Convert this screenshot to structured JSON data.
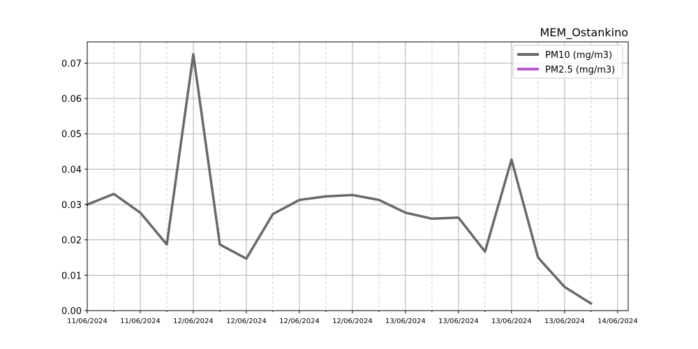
{
  "chart_data": {
    "type": "line",
    "title": "MEM_Ostankino",
    "xlabel": "",
    "ylabel": "",
    "ylim": [
      0.0,
      0.076
    ],
    "yticks": [
      0.0,
      0.01,
      0.02,
      0.03,
      0.04,
      0.05,
      0.06,
      0.07
    ],
    "ytick_labels": [
      "0.00",
      "0.01",
      "0.02",
      "0.03",
      "0.04",
      "0.05",
      "0.06",
      "0.07"
    ],
    "xlim": [
      0,
      20.4
    ],
    "xtick_labels": [
      "11/06/2024",
      "11/06/2024",
      "12/06/2024",
      "12/06/2024",
      "12/06/2024",
      "12/06/2024",
      "13/06/2024",
      "13/06/2024",
      "13/06/2024",
      "13/06/2024",
      "14/06/2024"
    ],
    "major_grid": true,
    "minor_grid": "dashed",
    "legend": {
      "placement": "top-right",
      "entries": [
        {
          "label": "PM10 (mg/m3)",
          "color": "#696969"
        },
        {
          "label": "PM2.5 (mg/m3)",
          "color": "#BA55D3"
        }
      ]
    },
    "series": [
      {
        "name": "PM10 (mg/m3)",
        "color": "#696969",
        "x": [
          0,
          1,
          2,
          3,
          4,
          5,
          6,
          7,
          8,
          9,
          10,
          11,
          12,
          13,
          14,
          15,
          16,
          17,
          18,
          19
        ],
        "values": [
          0.03,
          0.033,
          0.0277,
          0.0187,
          0.0725,
          0.0187,
          0.0147,
          0.0273,
          0.0313,
          0.0323,
          0.0327,
          0.0313,
          0.0277,
          0.026,
          0.0263,
          0.0167,
          0.0427,
          0.015,
          0.0067,
          0.002
        ]
      },
      {
        "name": "PM2.5 (mg/m3)",
        "color": "#BA55D3",
        "x": [],
        "values": []
      }
    ]
  }
}
